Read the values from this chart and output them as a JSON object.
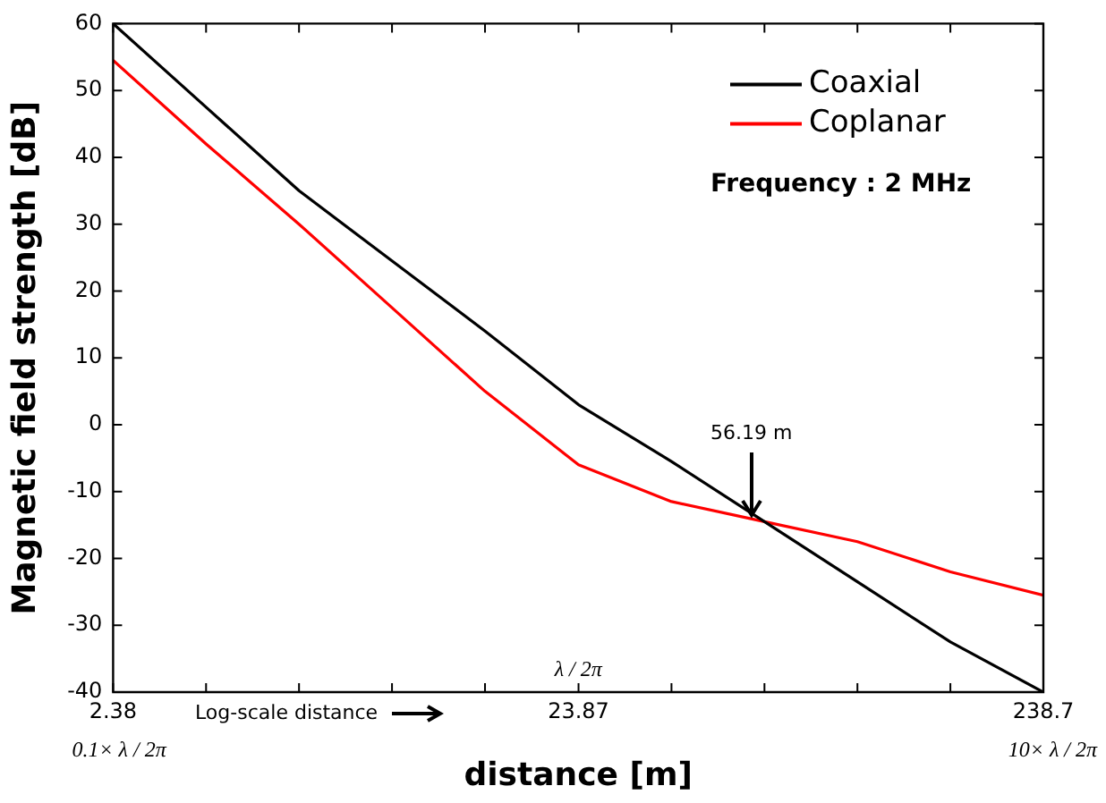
{
  "chart_data": {
    "type": "line",
    "xlabel": "distance [m]",
    "ylabel": "Magnetic field strength [dB]",
    "log": "x",
    "xlim": [
      2.38,
      238.7
    ],
    "ylim": [
      -40,
      60
    ],
    "xticks": [
      2.38,
      {
        "value": 3.772,
        "label": null
      },
      {
        "value": 5.978,
        "label": null
      },
      {
        "value": 9.475,
        "label": null
      },
      {
        "value": 15.02,
        "label": null
      },
      23.87,
      {
        "value": 37.83,
        "label": null
      },
      {
        "value": 59.96,
        "label": null
      },
      {
        "value": 95.03,
        "label": null
      },
      {
        "value": 150.6,
        "label": null
      },
      238.7
    ],
    "yticks": [
      -40,
      -30,
      -20,
      -10,
      0,
      10,
      20,
      30,
      40,
      50,
      60
    ],
    "x": [
      2.38,
      3.772,
      5.978,
      9.475,
      15.02,
      23.87,
      37.83,
      59.96,
      95.03,
      150.6,
      238.7
    ],
    "series": [
      {
        "name": "Coaxial",
        "color": "#000000",
        "values": [
          60,
          47.5,
          35,
          24.5,
          14,
          3,
          -5.5,
          -14.5,
          -23.5,
          -32.5,
          -40
        ]
      },
      {
        "name": "Coplanar",
        "color": "#ff0000",
        "values": [
          54.5,
          42,
          30,
          17.5,
          5,
          -6,
          -11.5,
          -14.5,
          -17.5,
          -22,
          -25.5
        ]
      }
    ],
    "legend": "top right",
    "marker": "none",
    "line_style": "solid",
    "grid": false,
    "annotations": [
      {
        "text": "56.19 m",
        "x": 56.19,
        "y": -14.5
      },
      "Frequency : 2 MHz",
      "Log-scale distance",
      "λ / 2π",
      "0.1× λ / 2π",
      "10× λ / 2π"
    ]
  }
}
